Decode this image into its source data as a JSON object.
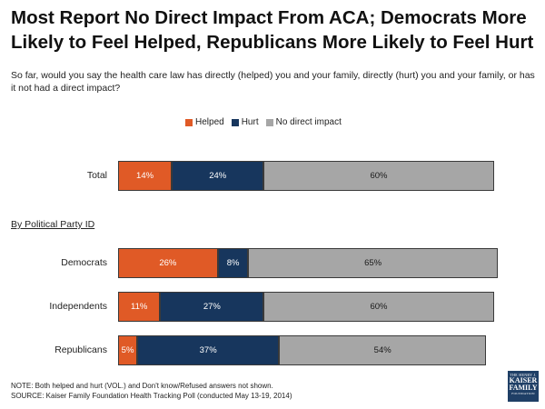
{
  "title": "Most Report No Direct Impact From ACA; Democrats More Likely to Feel Helped, Republicans More Likely to Feel Hurt",
  "question": "So far, would you say the health care law has directly (helped) you and your family, directly (hurt) you and your family, or has it not had a direct impact?",
  "section_label": "By Political Party ID",
  "note_line1": "NOTE: Both helped and hurt (VOL.) and Don't know/Refused answers not shown.",
  "note_line2": "SOURCE: Kaiser Family Foundation Health Tracking Poll (conducted May 13-19, 2014)",
  "logo": {
    "line1": "THE HENRY J.",
    "line2": "KAISER",
    "line3": "FAMILY",
    "line4": "FOUNDATION"
  },
  "colors": {
    "helped": "#e05a26",
    "hurt": "#17365d",
    "none": "#a6a6a6"
  },
  "chart_data": {
    "type": "bar",
    "orientation": "horizontal",
    "stacked": true,
    "categories": [
      "Total",
      "Democrats",
      "Independents",
      "Republicans"
    ],
    "series": [
      {
        "name": "Helped",
        "values": [
          14,
          26,
          11,
          5
        ]
      },
      {
        "name": "Hurt",
        "values": [
          24,
          8,
          27,
          37
        ]
      },
      {
        "name": "No direct impact",
        "values": [
          60,
          65,
          60,
          54
        ]
      }
    ],
    "value_labels": [
      [
        "14%",
        "24%",
        "60%"
      ],
      [
        "26%",
        "8%",
        "65%"
      ],
      [
        "11%",
        "27%",
        "60%"
      ],
      [
        "5%",
        "37%",
        "54%"
      ]
    ],
    "legend": [
      "Helped",
      "Hurt",
      "No direct impact"
    ],
    "legend_position": "top",
    "xlim": [
      0,
      100
    ],
    "grid": false
  }
}
